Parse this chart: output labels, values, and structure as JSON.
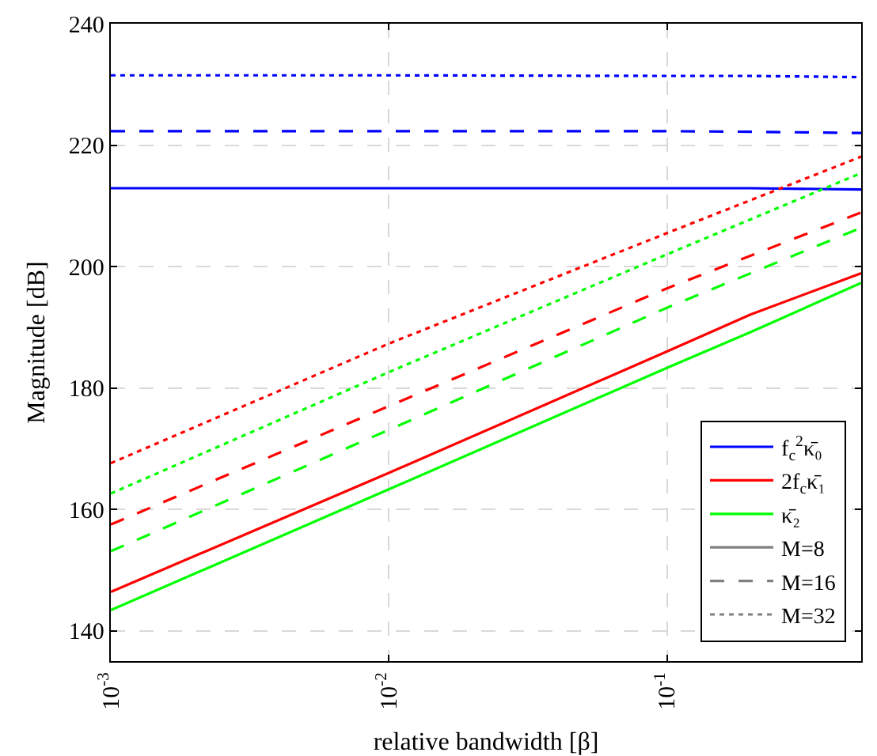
{
  "chart_data": {
    "type": "line",
    "xlabel": "relative bandwidth [β]",
    "ylabel": "Magnitude [dB]",
    "log": "x",
    "xlim": [
      0.001,
      0.5
    ],
    "ylim": [
      135,
      240
    ],
    "xticks": [
      {
        "value": 0.001,
        "label": "10$^{-3}$"
      },
      {
        "value": 0.01,
        "label": "10$^{-2}$"
      },
      {
        "value": 0.1,
        "label": "10$^{-1}$"
      }
    ],
    "yticks": [
      140,
      160,
      180,
      200,
      220,
      240
    ],
    "grid": true,
    "legend": "bottom right",
    "marker": "none",
    "series": [
      {
        "name": "f$_{c}$$^{2}$κ̄₀",
        "color": "#0000ff",
        "line_style": "solid",
        "x": [
          0.001,
          0.01,
          0.1,
          0.2,
          0.5
        ],
        "values": [
          212.9,
          212.9,
          212.9,
          212.9,
          212.7
        ]
      },
      {
        "name": "2f$_{c}$κ̄₁",
        "color": "#ff0000",
        "line_style": "solid",
        "x": [
          0.001,
          0.01,
          0.1,
          0.2,
          0.5
        ],
        "values": [
          146.4,
          166.0,
          186.0,
          192.1,
          198.9
        ]
      },
      {
        "name": "κ̄₂",
        "color": "#00ff00",
        "line_style": "solid",
        "x": [
          0.001,
          0.01,
          0.1,
          0.2,
          0.5
        ],
        "values": [
          143.4,
          163.3,
          183.3,
          189.2,
          197.3
        ]
      },
      {
        "name": "M=8",
        "color": "#808080",
        "line_style": "solid"
      },
      {
        "name": "M=16",
        "color": "#808080",
        "line_style": "dashed"
      },
      {
        "name": "M=32",
        "color": "#808080",
        "line_style": "dotted"
      },
      {
        "color": "#0000ff",
        "line_style": "dashed",
        "x": [
          0.001,
          0.01,
          0.1,
          0.2,
          0.5
        ],
        "values": [
          222.3,
          222.3,
          222.3,
          222.2,
          222.0
        ]
      },
      {
        "color": "#0000ff",
        "line_style": "dotted",
        "x": [
          0.001,
          0.01,
          0.1,
          0.2,
          0.5
        ],
        "values": [
          231.5,
          231.5,
          231.4,
          231.4,
          231.2
        ]
      },
      {
        "color": "#ff0000",
        "line_style": "dashed",
        "x": [
          0.001,
          0.01,
          0.1,
          0.5
        ],
        "values": [
          157.5,
          177.0,
          196.4,
          208.9
        ]
      },
      {
        "color": "#00ff00",
        "line_style": "dashed",
        "x": [
          0.001,
          0.01,
          0.1,
          0.5
        ],
        "values": [
          153.1,
          173.1,
          193.2,
          206.4
        ]
      },
      {
        "color": "#ff0000",
        "line_style": "dotted",
        "x": [
          0.001,
          0.01,
          0.1,
          0.5
        ],
        "values": [
          167.6,
          187.3,
          205.5,
          218.1
        ]
      },
      {
        "color": "#00ff00",
        "line_style": "dotted",
        "x": [
          0.001,
          0.01,
          0.1,
          0.5
        ],
        "values": [
          162.6,
          182.6,
          202.0,
          215.4
        ]
      }
    ]
  }
}
